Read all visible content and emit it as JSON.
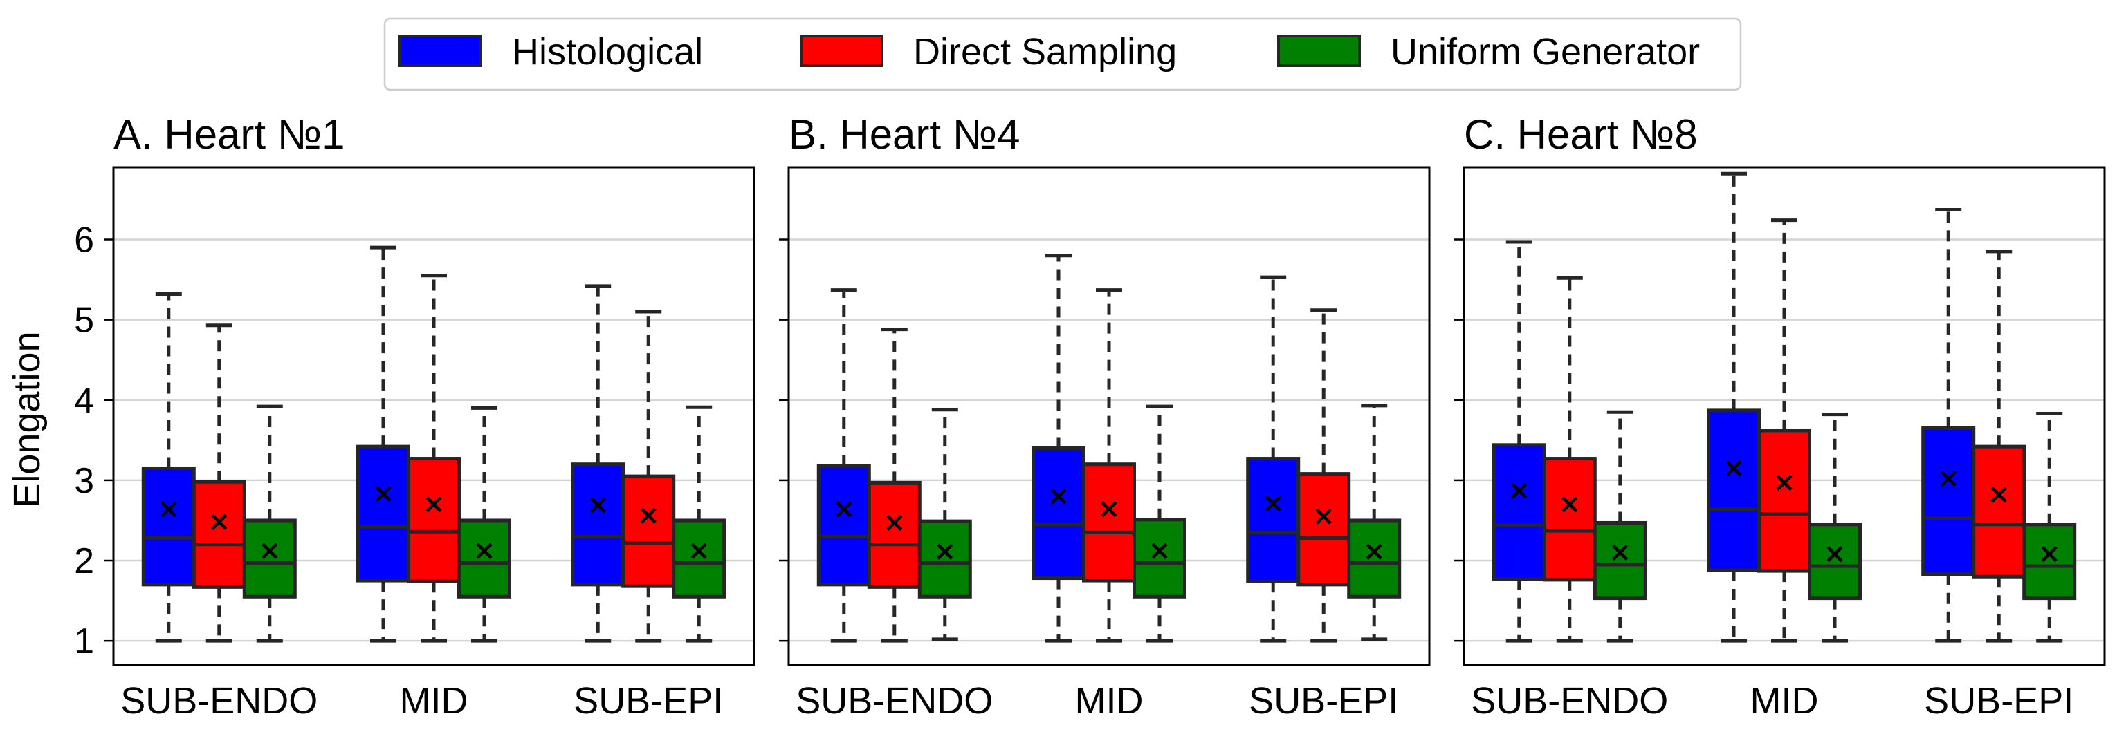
{
  "chart_data": {
    "type": "box",
    "ylabel": "Elongation",
    "xlabel": "",
    "ylim": [
      0.7,
      6.9
    ],
    "yticks": [
      1,
      2,
      3,
      4,
      5,
      6
    ],
    "grid": "horizontal",
    "legend_position": "top-center",
    "categories": [
      "SUB-ENDO",
      "MID",
      "SUB-EPI"
    ],
    "series": [
      {
        "name": "Histological",
        "color": "#0000ff"
      },
      {
        "name": "Direct Sampling",
        "color": "#ff0000"
      },
      {
        "name": "Uniform Generator",
        "color": "#008000"
      }
    ],
    "panels": [
      {
        "title": "A. Heart №1",
        "boxes": [
          [
            {
              "min": 1.0,
              "q1": 1.7,
              "median": 2.28,
              "q3": 3.15,
              "max": 5.32,
              "mean": 2.64
            },
            {
              "min": 1.0,
              "q1": 1.67,
              "median": 2.2,
              "q3": 2.98,
              "max": 4.93,
              "mean": 2.48
            },
            {
              "min": 1.0,
              "q1": 1.55,
              "median": 1.97,
              "q3": 2.5,
              "max": 3.92,
              "mean": 2.12
            }
          ],
          [
            {
              "min": 1.0,
              "q1": 1.75,
              "median": 2.42,
              "q3": 3.42,
              "max": 5.9,
              "mean": 2.83
            },
            {
              "min": 1.0,
              "q1": 1.74,
              "median": 2.36,
              "q3": 3.27,
              "max": 5.55,
              "mean": 2.7
            },
            {
              "min": 1.0,
              "q1": 1.55,
              "median": 1.97,
              "q3": 2.5,
              "max": 3.9,
              "mean": 2.12
            }
          ],
          [
            {
              "min": 1.0,
              "q1": 1.7,
              "median": 2.3,
              "q3": 3.2,
              "max": 5.42,
              "mean": 2.69
            },
            {
              "min": 1.0,
              "q1": 1.68,
              "median": 2.22,
              "q3": 3.05,
              "max": 5.1,
              "mean": 2.56
            },
            {
              "min": 1.0,
              "q1": 1.55,
              "median": 1.97,
              "q3": 2.5,
              "max": 3.91,
              "mean": 2.12
            }
          ]
        ]
      },
      {
        "title": "B. Heart №4",
        "boxes": [
          [
            {
              "min": 1.0,
              "q1": 1.7,
              "median": 2.3,
              "q3": 3.18,
              "max": 5.37,
              "mean": 2.64
            },
            {
              "min": 1.0,
              "q1": 1.67,
              "median": 2.2,
              "q3": 2.97,
              "max": 4.88,
              "mean": 2.47
            },
            {
              "min": 1.02,
              "q1": 1.55,
              "median": 1.97,
              "q3": 2.49,
              "max": 3.88,
              "mean": 2.11
            }
          ],
          [
            {
              "min": 1.0,
              "q1": 1.78,
              "median": 2.45,
              "q3": 3.4,
              "max": 5.8,
              "mean": 2.8
            },
            {
              "min": 1.0,
              "q1": 1.75,
              "median": 2.35,
              "q3": 3.2,
              "max": 5.37,
              "mean": 2.64
            },
            {
              "min": 1.0,
              "q1": 1.55,
              "median": 1.97,
              "q3": 2.51,
              "max": 3.92,
              "mean": 2.12
            }
          ],
          [
            {
              "min": 1.0,
              "q1": 1.74,
              "median": 2.35,
              "q3": 3.27,
              "max": 5.53,
              "mean": 2.71
            },
            {
              "min": 1.0,
              "q1": 1.7,
              "median": 2.28,
              "q3": 3.08,
              "max": 5.12,
              "mean": 2.55
            },
            {
              "min": 1.02,
              "q1": 1.55,
              "median": 1.97,
              "q3": 2.5,
              "max": 3.93,
              "mean": 2.11
            }
          ]
        ]
      },
      {
        "title": "C. Heart №8",
        "boxes": [
          [
            {
              "min": 1.0,
              "q1": 1.77,
              "median": 2.44,
              "q3": 3.44,
              "max": 5.97,
              "mean": 2.87
            },
            {
              "min": 1.0,
              "q1": 1.76,
              "median": 2.37,
              "q3": 3.27,
              "max": 5.52,
              "mean": 2.7
            },
            {
              "min": 1.0,
              "q1": 1.53,
              "median": 1.95,
              "q3": 2.47,
              "max": 3.85,
              "mean": 2.1
            }
          ],
          [
            {
              "min": 1.0,
              "q1": 1.88,
              "median": 2.64,
              "q3": 3.87,
              "max": 6.82,
              "mean": 3.15
            },
            {
              "min": 1.0,
              "q1": 1.87,
              "median": 2.58,
              "q3": 3.62,
              "max": 6.24,
              "mean": 2.97
            },
            {
              "min": 1.0,
              "q1": 1.53,
              "median": 1.93,
              "q3": 2.45,
              "max": 3.82,
              "mean": 2.08
            }
          ],
          [
            {
              "min": 1.0,
              "q1": 1.83,
              "median": 2.53,
              "q3": 3.65,
              "max": 6.37,
              "mean": 3.02
            },
            {
              "min": 1.0,
              "q1": 1.8,
              "median": 2.45,
              "q3": 3.42,
              "max": 5.85,
              "mean": 2.82
            },
            {
              "min": 1.0,
              "q1": 1.53,
              "median": 1.93,
              "q3": 2.45,
              "max": 3.83,
              "mean": 2.08
            }
          ]
        ]
      }
    ]
  }
}
